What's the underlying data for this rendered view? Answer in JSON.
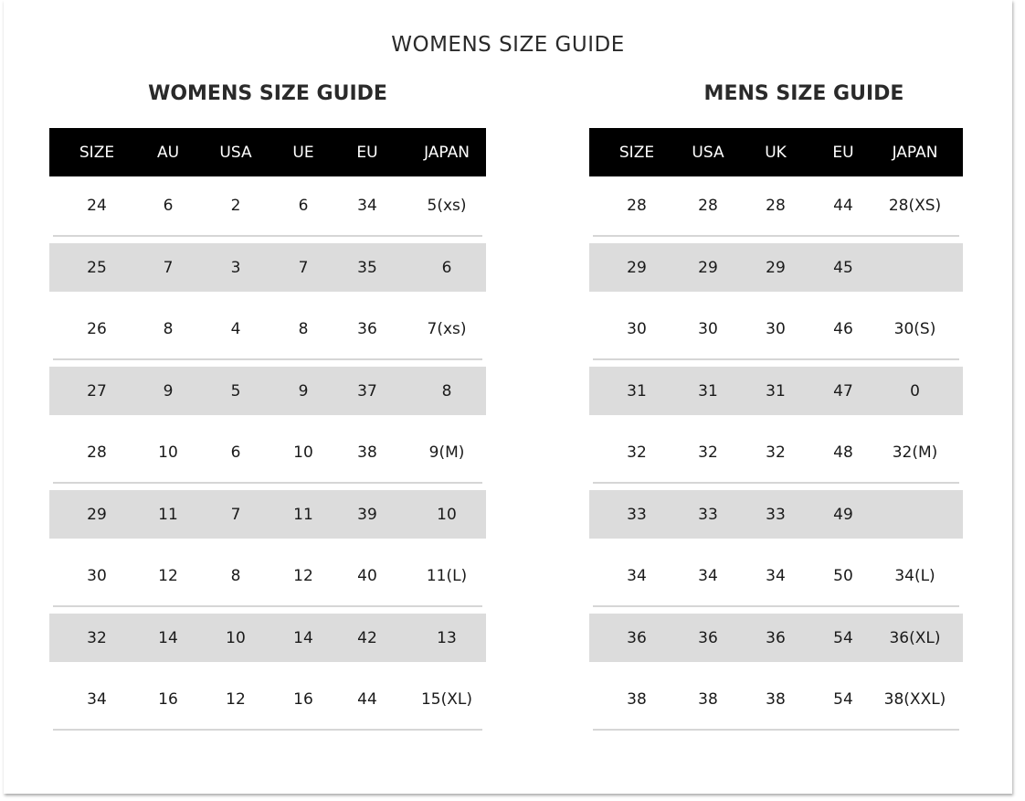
{
  "page_title": "WOMENS SIZE GUIDE",
  "womens": {
    "title": "WOMENS SIZE GUIDE",
    "headers": [
      "SIZE",
      "AU",
      "USA",
      "UE",
      "EU",
      "JAPAN"
    ],
    "rows": [
      [
        "24",
        "6",
        "2",
        "6",
        "34",
        "5(xs)"
      ],
      [
        "25",
        "7",
        "3",
        "7",
        "35",
        "6"
      ],
      [
        "26",
        "8",
        "4",
        "8",
        "36",
        "7(xs)"
      ],
      [
        "27",
        "9",
        "5",
        "9",
        "37",
        "8"
      ],
      [
        "28",
        "10",
        "6",
        "10",
        "38",
        "9(M)"
      ],
      [
        "29",
        "11",
        "7",
        "11",
        "39",
        "10"
      ],
      [
        "30",
        "12",
        "8",
        "12",
        "40",
        "11(L)"
      ],
      [
        "32",
        "14",
        "10",
        "14",
        "42",
        "13"
      ],
      [
        "34",
        "16",
        "12",
        "16",
        "44",
        "15(XL)"
      ]
    ]
  },
  "mens": {
    "title": "MENS SIZE GUIDE",
    "headers": [
      "SIZE",
      "USA",
      "UK",
      "EU",
      "JAPAN"
    ],
    "rows": [
      [
        "28",
        "28",
        "28",
        "44",
        "28(XS)"
      ],
      [
        "29",
        "29",
        "29",
        "45",
        ""
      ],
      [
        "30",
        "30",
        "30",
        "46",
        "30(S)"
      ],
      [
        "31",
        "31",
        "31",
        "47",
        "0"
      ],
      [
        "32",
        "32",
        "32",
        "48",
        "32(M)"
      ],
      [
        "33",
        "33",
        "33",
        "49",
        ""
      ],
      [
        "34",
        "34",
        "34",
        "50",
        "34(L)"
      ],
      [
        "36",
        "36",
        "36",
        "54",
        "36(XL)"
      ],
      [
        "38",
        "38",
        "38",
        "54",
        "38(XXL)"
      ]
    ]
  }
}
